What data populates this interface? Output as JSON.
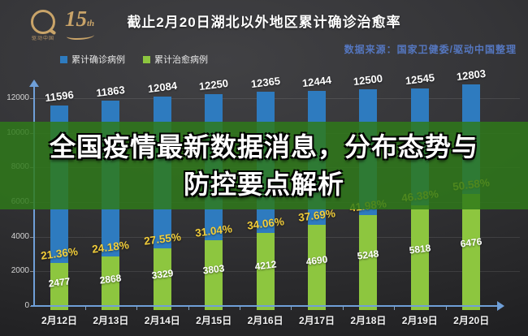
{
  "header": {
    "title": "截止2月20日湖北以外地区累计确诊治愈率",
    "source": "数据来源：国家卫健委/驱动中国整理"
  },
  "logo": {
    "brand": "驱动中国",
    "anniversary": "15",
    "anniversary_suffix": "th"
  },
  "overlay": {
    "line1": "全国疫情最新数据消息，分布态势与",
    "line2": "防控要点解析"
  },
  "colors": {
    "confirmed": "#2e7bbf",
    "cured": "#8dc63f",
    "percent_text": "#f2cd3a",
    "axis": "#6f9fd8",
    "source_text": "#5577c0",
    "overlay_band": "#2f7a19",
    "overlay_opacity": 0.84,
    "gold": "#c9a469"
  },
  "chart_data": {
    "type": "bar",
    "title": "截止2月20日湖北以外地区累计确诊治愈率",
    "categories": [
      "2月12日",
      "2月13日",
      "2月14日",
      "2月15日",
      "2月16日",
      "2月17日",
      "2月18日",
      "2月19日",
      "2月20日"
    ],
    "series": [
      {
        "name": "累计确诊病例",
        "color": "#2e7bbf",
        "values": [
          11596,
          11863,
          12084,
          12250,
          12365,
          12444,
          12500,
          12545,
          12803
        ]
      },
      {
        "name": "累计治愈病例",
        "color": "#8dc63f",
        "values": [
          2477,
          2868,
          3329,
          3803,
          4212,
          4690,
          5248,
          5818,
          6476
        ]
      }
    ],
    "cure_rate_labels": [
      "21.36%",
      "24.18%",
      "27.55%",
      "31.04%",
      "34.06%",
      "37.69%",
      "41.98%",
      "46.38%",
      "50.58%"
    ],
    "xlabel": "",
    "ylabel": "",
    "ylim": [
      0,
      12000
    ],
    "yticks": [
      0,
      2000,
      4000,
      6000,
      8000,
      10000,
      12000
    ],
    "grid": true,
    "legend_position": "top-left",
    "bar_style": "overlaid"
  }
}
